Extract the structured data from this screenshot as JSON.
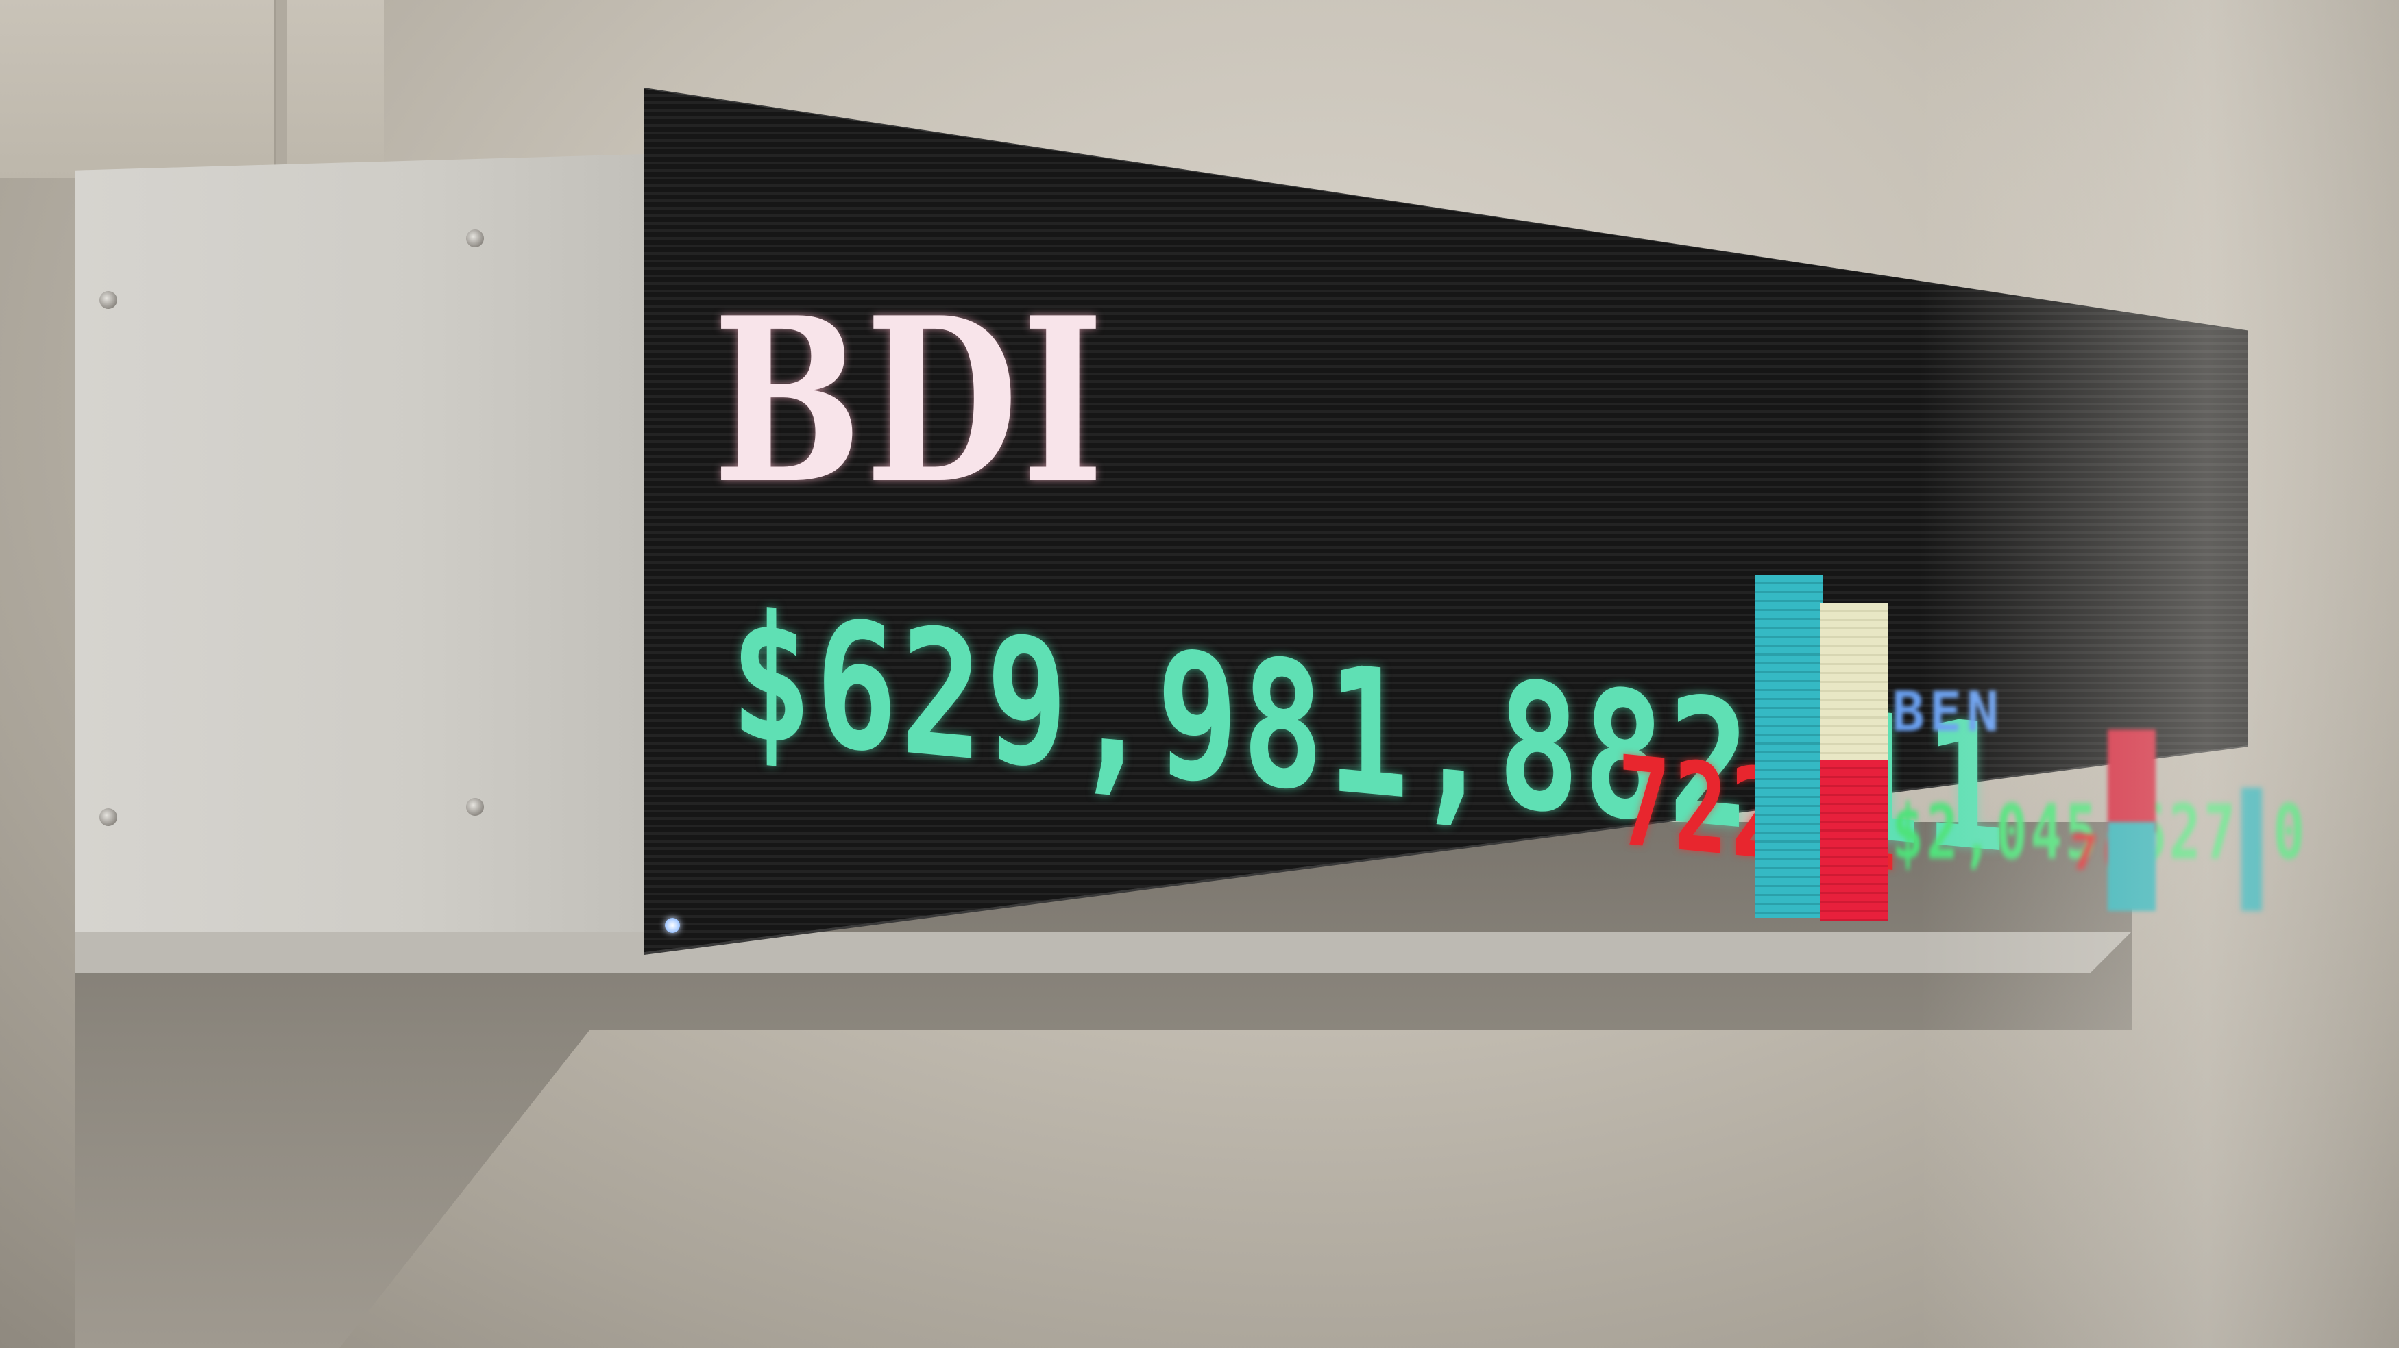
{
  "ticker": {
    "symbol": "BDI",
    "price": "$629,981,882,11",
    "change": "722,1",
    "next_symbol": "BEN",
    "next_price": "$2,045,627,0",
    "next_change": "76",
    "colors": {
      "symbol": "#f8e4ea",
      "price": "#5fe0b4",
      "change": "#e8262e",
      "panel": "#1a1a1a",
      "housing": "#d6d4cf"
    }
  }
}
